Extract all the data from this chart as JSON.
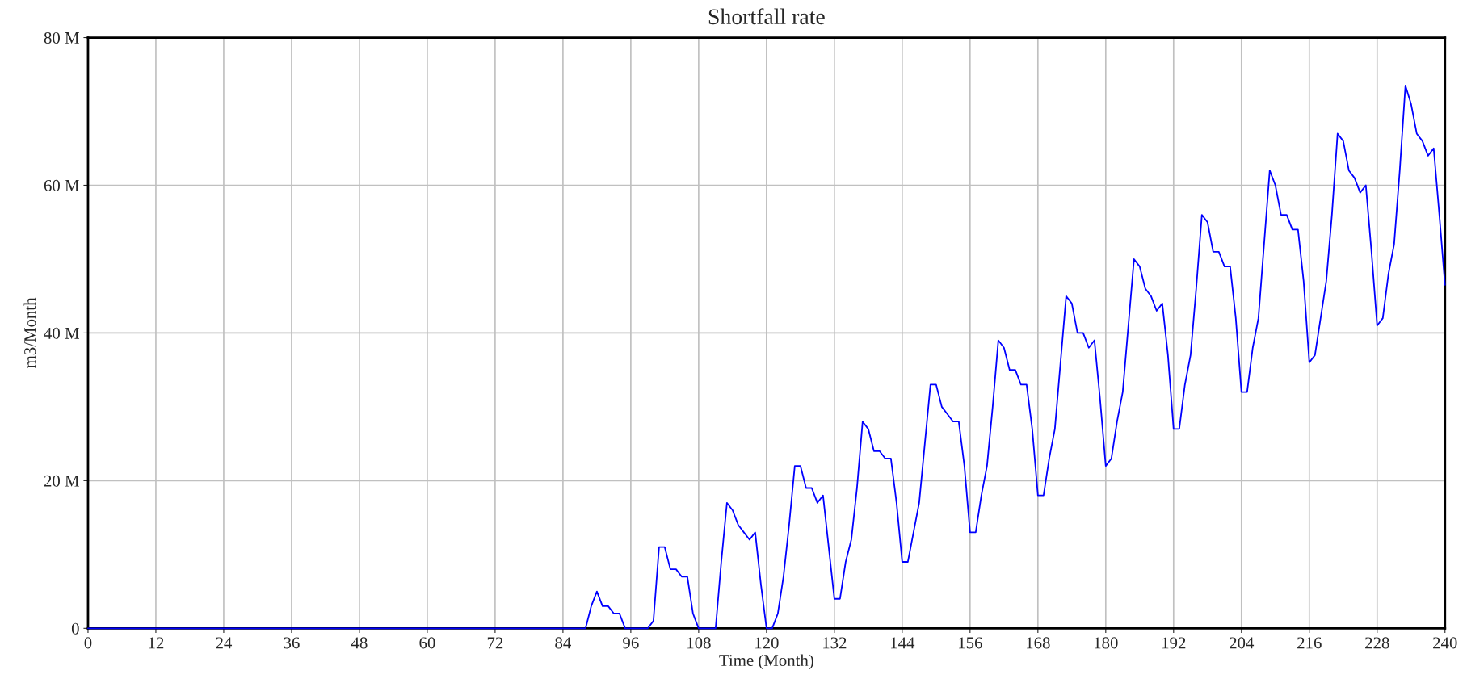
{
  "chart_data": {
    "type": "line",
    "title": "Shortfall rate",
    "xlabel": "Time (Month)",
    "ylabel": "m3/Month",
    "xlim": [
      0,
      240
    ],
    "xticks": [
      0,
      12,
      24,
      36,
      48,
      60,
      72,
      84,
      96,
      108,
      120,
      132,
      144,
      156,
      168,
      180,
      192,
      204,
      216,
      228,
      240
    ],
    "ylim": [
      0,
      80
    ],
    "yticks": [
      {
        "value": 0,
        "label": "0"
      },
      {
        "value": 20,
        "label": "20 M"
      },
      {
        "value": 40,
        "label": "40 M"
      },
      {
        "value": 60,
        "label": "60 M"
      },
      {
        "value": 80,
        "label": "80 M"
      }
    ],
    "grid": true,
    "line_style": "solid",
    "series": [
      {
        "color": "#0000ff",
        "x": [
          0,
          88,
          89,
          90,
          91,
          92,
          93,
          94,
          95,
          96,
          97,
          98,
          99,
          100,
          101,
          102,
          103,
          104,
          105,
          106,
          107,
          108,
          109,
          110,
          111,
          112,
          113,
          114,
          115,
          116,
          117,
          118,
          119,
          120,
          121,
          122,
          123,
          124,
          125,
          126,
          127,
          128,
          129,
          130,
          131,
          132,
          133,
          134,
          135,
          136,
          137,
          138,
          139,
          140,
          141,
          142,
          143,
          144,
          145,
          146,
          147,
          148,
          149,
          150,
          151,
          152,
          153,
          154,
          155,
          156,
          157,
          158,
          159,
          160,
          161,
          162,
          163,
          164,
          165,
          166,
          167,
          168,
          169,
          170,
          171,
          172,
          173,
          174,
          175,
          176,
          177,
          178,
          179,
          180,
          181,
          182,
          183,
          184,
          185,
          186,
          187,
          188,
          189,
          190,
          191,
          192,
          193,
          194,
          195,
          196,
          197,
          198,
          199,
          200,
          201,
          202,
          203,
          204,
          205,
          206,
          207,
          208,
          209,
          210,
          211,
          212,
          213,
          214,
          215,
          216,
          217,
          218,
          219,
          220,
          221,
          222,
          223,
          224,
          225,
          226,
          227,
          228,
          229,
          230,
          231,
          232,
          233,
          234,
          235,
          236,
          237,
          238,
          239,
          240
        ],
        "values": [
          0,
          0,
          3,
          5,
          3,
          3,
          2,
          2,
          0,
          0,
          0,
          0,
          0,
          1,
          11,
          11,
          8,
          8,
          7,
          7,
          2,
          0,
          0,
          0,
          0,
          9,
          17,
          16,
          14,
          13,
          12,
          13,
          6,
          0,
          0,
          2,
          7,
          14,
          22,
          22,
          19,
          19,
          17,
          18,
          11,
          4,
          4,
          9,
          12,
          19,
          28,
          27,
          24,
          24,
          23,
          23,
          17,
          9,
          9,
          13,
          17,
          25,
          33,
          33,
          30,
          29,
          28,
          28,
          22,
          13,
          13,
          18,
          22,
          30,
          39,
          38,
          35,
          35,
          33,
          33,
          27,
          18,
          18,
          23,
          27,
          36,
          45,
          44,
          40,
          40,
          38,
          39,
          31,
          22,
          23,
          28,
          32,
          41,
          50,
          49,
          46,
          45,
          43,
          44,
          37,
          27,
          27,
          33,
          37,
          46,
          56,
          55,
          51,
          51,
          49,
          49,
          42,
          32,
          32,
          38,
          42,
          52,
          62,
          60,
          56,
          56,
          54,
          54,
          47,
          36,
          37,
          42,
          47,
          56,
          67,
          66,
          62,
          61,
          59,
          60,
          51,
          41,
          42,
          48,
          52,
          62,
          73.5,
          71,
          67,
          66,
          64,
          65,
          56,
          46.5
        ]
      }
    ]
  }
}
